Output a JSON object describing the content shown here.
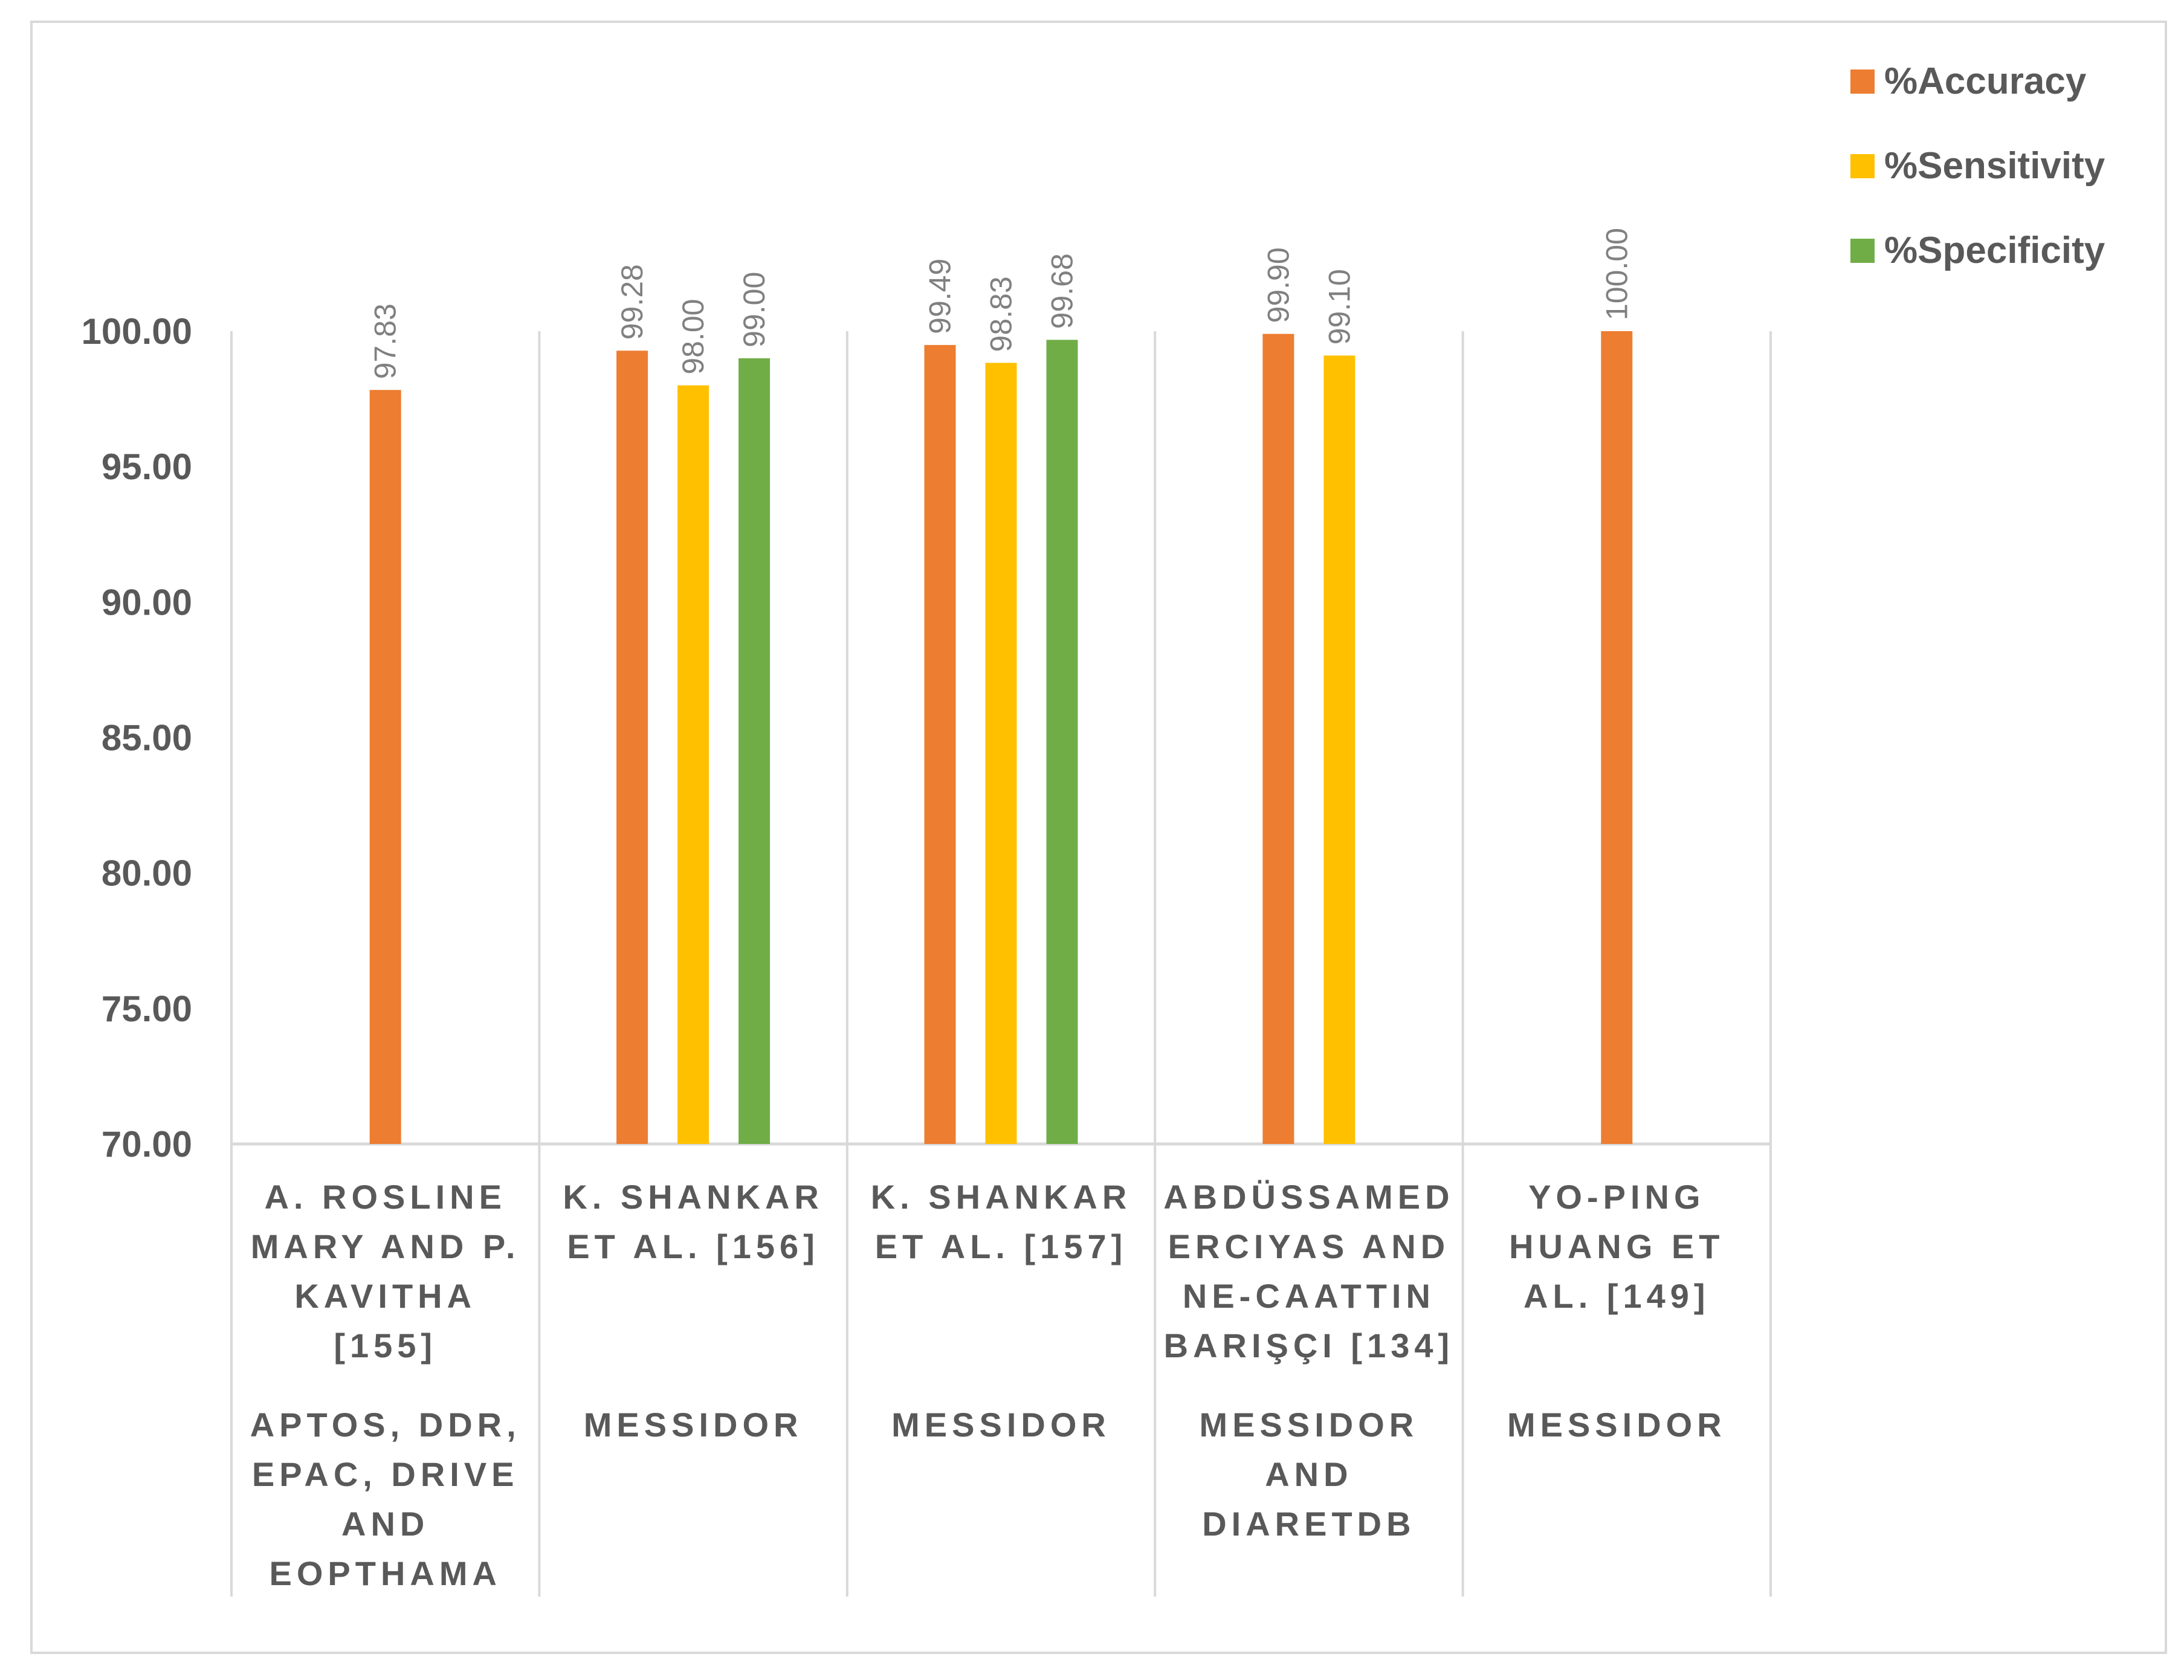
{
  "chart_data": {
    "type": "bar",
    "title": "",
    "xlabel": "",
    "ylabel": "",
    "ylim": [
      70,
      100
    ],
    "yticks": [
      "70.00",
      "75.00",
      "80.00",
      "85.00",
      "90.00",
      "95.00",
      "100.00"
    ],
    "legend_position": "top-right",
    "categories": [
      {
        "name_lines": [
          "A. ROSLINE",
          "MARY AND P.",
          "KAVITHA",
          "[155]"
        ],
        "dataset_lines": [
          "APTOS, DDR,",
          "EPAC, DRIVE",
          "AND",
          "EOPTHAMA"
        ]
      },
      {
        "name_lines": [
          "K. SHANKAR",
          "ET AL. [156]"
        ],
        "dataset_lines": [
          "MESSIDOR"
        ]
      },
      {
        "name_lines": [
          "K. SHANKAR",
          "ET AL. [157]"
        ],
        "dataset_lines": [
          "MESSIDOR"
        ]
      },
      {
        "name_lines": [
          "ABDÜSSAMED",
          "ERCIYAS AND",
          "NE-CAATTIN",
          "BARIŞÇI [134]"
        ],
        "dataset_lines": [
          "MESSIDOR",
          "AND",
          "DIARETDB"
        ]
      },
      {
        "name_lines": [
          "YO-PING",
          "HUANG ET",
          "AL. [149]"
        ],
        "dataset_lines": [
          "MESSIDOR"
        ]
      }
    ],
    "series": [
      {
        "name": "%Accuracy",
        "color": "#ed7d31",
        "values": [
          97.83,
          99.28,
          99.49,
          99.9,
          100.0
        ],
        "labels": [
          "97.83",
          "99.28",
          "99.49",
          "99.90",
          "100.00"
        ]
      },
      {
        "name": "%Sensitivity",
        "color": "#ffc000",
        "values": [
          null,
          98.0,
          98.83,
          99.1,
          null
        ],
        "labels": [
          null,
          "98.00",
          "98.83",
          "99.10",
          null
        ]
      },
      {
        "name": "%Specificity",
        "color": "#70ad47",
        "values": [
          null,
          99.0,
          99.68,
          null,
          null
        ],
        "labels": [
          null,
          "99.00",
          "99.68",
          null,
          null
        ]
      }
    ]
  }
}
